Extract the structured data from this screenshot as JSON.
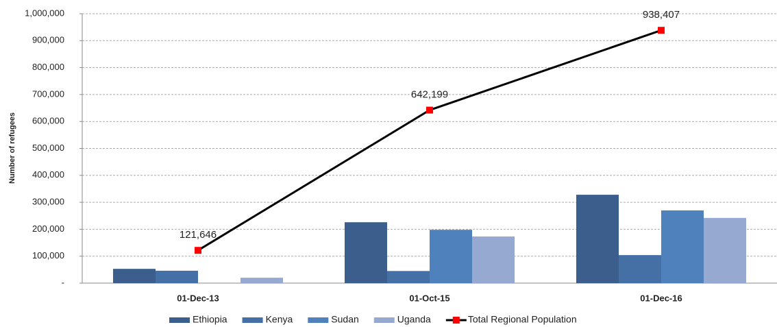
{
  "chart_data": {
    "type": "bar_line",
    "y_axis_label": "Number of refugees",
    "categories": [
      "01-Dec-13",
      "01-Oct-15",
      "01-Dec-16"
    ],
    "series": [
      {
        "name": "Ethiopia",
        "color": "#3b5e8c",
        "values": [
          53000,
          226000,
          328000
        ]
      },
      {
        "name": "Kenya",
        "color": "#4470a5",
        "values": [
          46000,
          45000,
          104000
        ]
      },
      {
        "name": "Sudan",
        "color": "#4f81bd",
        "values": [
          0,
          198000,
          270000
        ]
      },
      {
        "name": "Uganda",
        "color": "#95a9d1",
        "values": [
          20000,
          173000,
          242000
        ]
      },
      {
        "name": "Total Regional Population",
        "type": "line",
        "color": "#000000",
        "marker_color": "#ff0000",
        "values": [
          121646,
          642199,
          938407
        ],
        "value_labels": [
          "121,646",
          "642,199",
          "938,407"
        ]
      }
    ],
    "ylim": [
      0,
      1000000
    ],
    "yticks": [
      {
        "value": 0,
        "label": "-"
      },
      {
        "value": 100000,
        "label": "100,000"
      },
      {
        "value": 200000,
        "label": "200,000"
      },
      {
        "value": 300000,
        "label": "300,000"
      },
      {
        "value": 400000,
        "label": "400,000"
      },
      {
        "value": 500000,
        "label": "500,000"
      },
      {
        "value": 600000,
        "label": "600,000"
      },
      {
        "value": 700000,
        "label": "700,000"
      },
      {
        "value": 800000,
        "label": "800,000"
      },
      {
        "value": 900000,
        "label": "900,000"
      },
      {
        "value": 1000000,
        "label": "1,000,000"
      }
    ],
    "grid": true,
    "legend": "bottom"
  }
}
